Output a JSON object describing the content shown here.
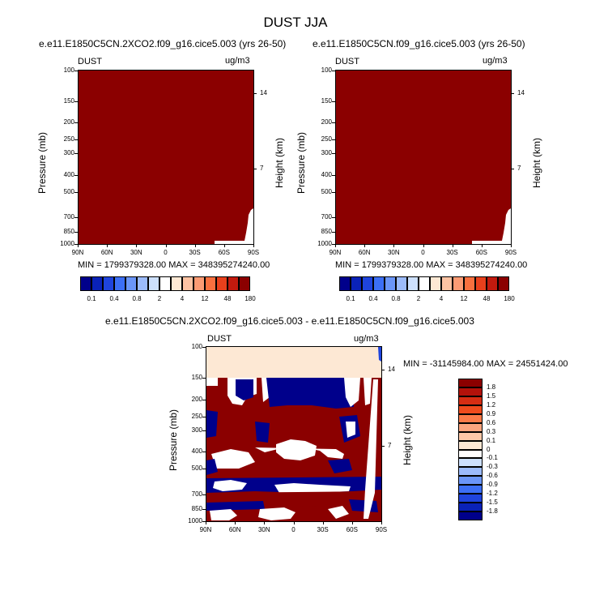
{
  "figure": {
    "title": "DUST JJA"
  },
  "colors": {
    "dark_red": "#8b0000",
    "navy": "#00008b",
    "peach": "#fde8d4",
    "white": "#ffffff"
  },
  "chart_data": [
    {
      "type": "heatmap",
      "title": "e.e11.E1850C5CN.2XCO2.f09_g16.cice5.003 (yrs 26-50)",
      "left_label": "DUST",
      "right_label": "ug/m3",
      "ylabel": "Pressure (mb)",
      "ylabel_right": "Height (km)",
      "x_ticks": [
        "90N",
        "60N",
        "30N",
        "0",
        "30S",
        "60S",
        "90S"
      ],
      "y_ticks": [
        "100",
        "150",
        "200",
        "250",
        "300",
        "400",
        "500",
        "700",
        "850",
        "1000"
      ],
      "y_right_ticks": [
        "14",
        "7"
      ],
      "x_range": [
        90,
        -90
      ],
      "y_range": [
        100,
        1000
      ],
      "y_scale": "log",
      "stats": "MIN = 1799379328.00   MAX = 348395274240.00",
      "dominant_level": "180",
      "colorbar": {
        "orientation": "horizontal",
        "labels": [
          "0.1",
          "0.4",
          "0.8",
          "2",
          "4",
          "12",
          "48",
          "180"
        ],
        "colors": [
          "#00008b",
          "#0a22b8",
          "#1f44dd",
          "#3c6ff5",
          "#6b96f8",
          "#9cbbfb",
          "#cde0fd",
          "#ffffff",
          "#fde8d4",
          "#fcc3a3",
          "#fb9b74",
          "#f8703f",
          "#e8401c",
          "#c21a0e",
          "#8b0000"
        ]
      }
    },
    {
      "type": "heatmap",
      "title": "e.e11.E1850C5CN.f09_g16.cice5.003 (yrs 26-50)",
      "left_label": "DUST",
      "right_label": "ug/m3",
      "ylabel": "Pressure (mb)",
      "ylabel_right": "Height (km)",
      "x_ticks": [
        "90N",
        "60N",
        "30N",
        "0",
        "30S",
        "60S",
        "90S"
      ],
      "y_ticks": [
        "100",
        "150",
        "200",
        "250",
        "300",
        "400",
        "500",
        "700",
        "850",
        "1000"
      ],
      "y_right_ticks": [
        "14",
        "7"
      ],
      "x_range": [
        90,
        -90
      ],
      "y_range": [
        100,
        1000
      ],
      "y_scale": "log",
      "stats": "MIN = 1799379328.00   MAX = 348395274240.00",
      "dominant_level": "180",
      "colorbar": {
        "orientation": "horizontal",
        "labels": [
          "0.1",
          "0.4",
          "0.8",
          "2",
          "4",
          "12",
          "48",
          "180"
        ],
        "colors": [
          "#00008b",
          "#0a22b8",
          "#1f44dd",
          "#3c6ff5",
          "#6b96f8",
          "#9cbbfb",
          "#cde0fd",
          "#ffffff",
          "#fde8d4",
          "#fcc3a3",
          "#fb9b74",
          "#f8703f",
          "#e8401c",
          "#c21a0e",
          "#8b0000"
        ]
      }
    },
    {
      "type": "heatmap",
      "title": "e.e11.E1850C5CN.2XCO2.f09_g16.cice5.003 - e.e11.E1850C5CN.f09_g16.cice5.003",
      "left_label": "DUST",
      "right_label": "ug/m3",
      "ylabel": "Pressure (mb)",
      "ylabel_right": "Height (km)",
      "x_ticks": [
        "90N",
        "60N",
        "30N",
        "0",
        "30S",
        "60S",
        "90S"
      ],
      "y_ticks": [
        "100",
        "150",
        "200",
        "250",
        "300",
        "400",
        "500",
        "700",
        "850",
        "1000"
      ],
      "y_right_ticks": [
        "14",
        "7"
      ],
      "x_range": [
        90,
        -90
      ],
      "y_range": [
        100,
        1000
      ],
      "y_scale": "log",
      "stats": "MIN = -31145984.00   MAX = 24551424.00",
      "colorbar": {
        "orientation": "vertical",
        "labels": [
          "1.8",
          "1.5",
          "1.2",
          "0.9",
          "0.6",
          "0.3",
          "0.1",
          "0",
          "-0.1",
          "-0.3",
          "-0.6",
          "-0.9",
          "-1.2",
          "-1.5",
          "-1.8"
        ],
        "colors": [
          "#8b0000",
          "#b3120b",
          "#d62d13",
          "#ef4b1d",
          "#fb7a48",
          "#fca57e",
          "#fdc8a8",
          "#fde8d4",
          "#ffffff",
          "#cde0fd",
          "#9cbbfb",
          "#6b96f8",
          "#3c6ff5",
          "#1f44dd",
          "#0a22b8",
          "#00008b"
        ]
      }
    }
  ]
}
